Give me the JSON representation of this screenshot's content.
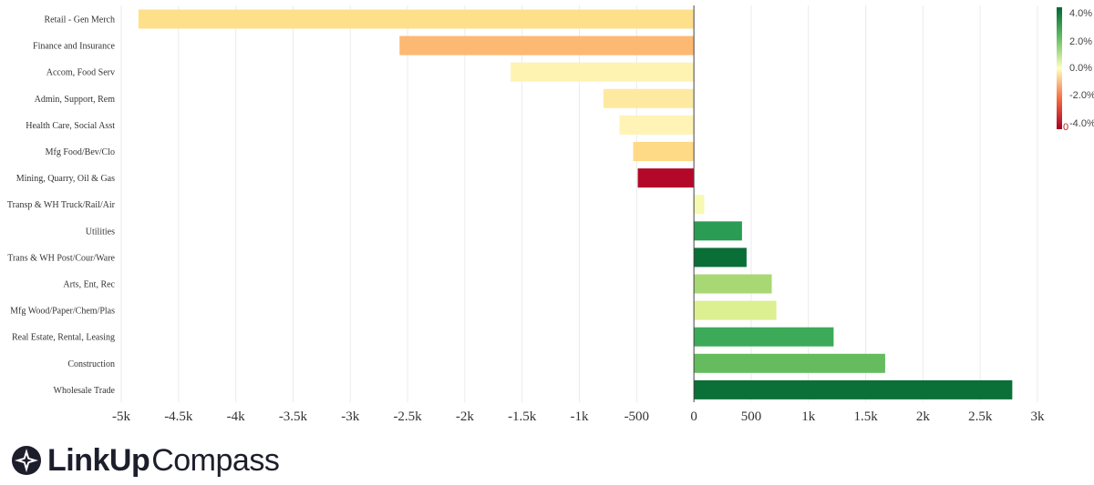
{
  "chart_data": {
    "type": "bar",
    "orientation": "horizontal",
    "categories": [
      "Retail - Gen Merch",
      "Finance and Insurance",
      "Accom, Food Serv",
      "Admin, Support, Rem",
      "Health Care, Social Asst",
      "Mfg Food/Bev/Clo",
      "Mining, Quarry, Oil & Gas",
      "Transp & WH Truck/Rail/Air",
      "Utilities",
      "Trans & WH Post/Cour/Ware",
      "Arts, Ent, Rec",
      "Mfg Wood/Paper/Chem/Plas",
      "Real Estate, Rental, Leasing",
      "Construction",
      "Wholesale Trade"
    ],
    "values": [
      -4850,
      -2570,
      -1600,
      -790,
      -650,
      -530,
      -490,
      90,
      420,
      460,
      680,
      720,
      1220,
      1670,
      2780
    ],
    "colors": [
      "#fee08b",
      "#fdb872",
      "#fef3b1",
      "#fee9a0",
      "#fff3b6",
      "#fed986",
      "#b3082a",
      "#f6f9b0",
      "#2a9c54",
      "#0a6e37",
      "#a8d873",
      "#dcef91",
      "#3caa59",
      "#64bc5f",
      "#0b6f38"
    ],
    "xlim": [
      -5000,
      3000
    ],
    "xticks": [
      -5000,
      -4500,
      -4000,
      -3500,
      -3000,
      -2500,
      -2000,
      -1500,
      -1000,
      -500,
      0,
      500,
      1000,
      1500,
      2000,
      2500,
      3000
    ],
    "xtick_labels": [
      "-5k",
      "-4.5k",
      "-4k",
      "-3.5k",
      "-3k",
      "-2.5k",
      "-2k",
      "-1.5k",
      "-1k",
      "-500",
      "0",
      "500",
      "1k",
      "1.5k",
      "2k",
      "2.5k",
      "3k"
    ],
    "grid": true,
    "title": "",
    "xlabel": "",
    "ylabel": "",
    "colorbar": {
      "labels": [
        "4.0%",
        "2.0%",
        "0.0%",
        "-2.0%",
        "-4.0%"
      ],
      "bottom_label": "0",
      "colors_top_to_bottom": [
        "#006837",
        "#66bd63",
        "#ffffbf",
        "#f46d43",
        "#a50026"
      ]
    }
  },
  "logo": {
    "bold_text": "LinkUp",
    "light_text": "Compass",
    "icon": "compass-star-icon",
    "color": "#1d1e2c"
  }
}
